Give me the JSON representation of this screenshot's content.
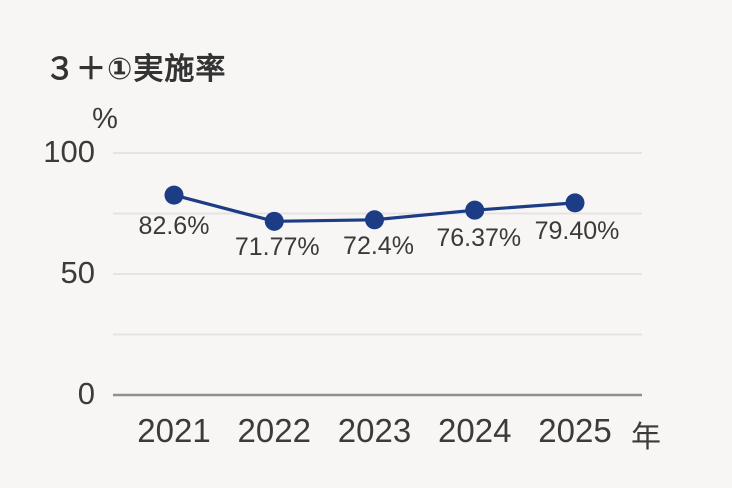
{
  "page": {
    "background_color": "#f7f6f4"
  },
  "chart_data": {
    "type": "line",
    "title": "３＋①実施率",
    "categories": [
      "2021",
      "2022",
      "2023",
      "2024",
      "2025"
    ],
    "values": [
      82.6,
      71.77,
      72.4,
      76.37,
      79.4
    ],
    "value_labels": [
      "82.6%",
      "71.77%",
      "72.4%",
      "76.37%",
      "79.40%"
    ],
    "xlabel": "年",
    "ylabel": "%",
    "ylim": [
      0,
      100
    ],
    "yticks": [
      100,
      50,
      0
    ],
    "ytick_labels": [
      "100",
      "50",
      "0"
    ],
    "gridline_values": [
      100,
      75,
      50,
      25
    ],
    "baseline_value": 0,
    "grid": true,
    "legend_position": "none",
    "line_color": "#1c3c85",
    "point_color": "#1c3c85",
    "gridline_color": "#e3e2e0",
    "baseline_color": "#8f8f8f",
    "text_color": "#3b3b3b",
    "title_color": "#333333"
  }
}
